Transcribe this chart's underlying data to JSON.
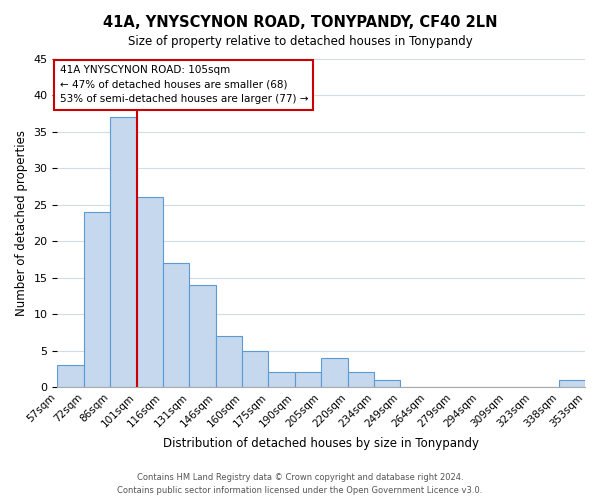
{
  "title": "41A, YNYSCYNON ROAD, TONYPANDY, CF40 2LN",
  "subtitle": "Size of property relative to detached houses in Tonypandy",
  "xlabel": "Distribution of detached houses by size in Tonypandy",
  "ylabel": "Number of detached properties",
  "bin_labels": [
    "57sqm",
    "72sqm",
    "86sqm",
    "101sqm",
    "116sqm",
    "131sqm",
    "146sqm",
    "160sqm",
    "175sqm",
    "190sqm",
    "205sqm",
    "220sqm",
    "234sqm",
    "249sqm",
    "264sqm",
    "279sqm",
    "294sqm",
    "309sqm",
    "323sqm",
    "338sqm",
    "353sqm"
  ],
  "bar_heights": [
    3,
    24,
    37,
    26,
    17,
    14,
    7,
    5,
    2,
    2,
    4,
    2,
    1,
    0,
    0,
    0,
    0,
    0,
    0,
    1
  ],
  "bar_color": "#c5d8ed",
  "bar_edge_color": "#5b9bd5",
  "vline_index": 3,
  "vline_color": "#cc0000",
  "ylim": [
    0,
    45
  ],
  "yticks": [
    0,
    5,
    10,
    15,
    20,
    25,
    30,
    35,
    40,
    45
  ],
  "annotation_title": "41A YNYSCYNON ROAD: 105sqm",
  "annotation_line1": "← 47% of detached houses are smaller (68)",
  "annotation_line2": "53% of semi-detached houses are larger (77) →",
  "footer_line1": "Contains HM Land Registry data © Crown copyright and database right 2024.",
  "footer_line2": "Contains public sector information licensed under the Open Government Licence v3.0.",
  "bg_color": "#ffffff",
  "grid_color": "#d0dce8"
}
